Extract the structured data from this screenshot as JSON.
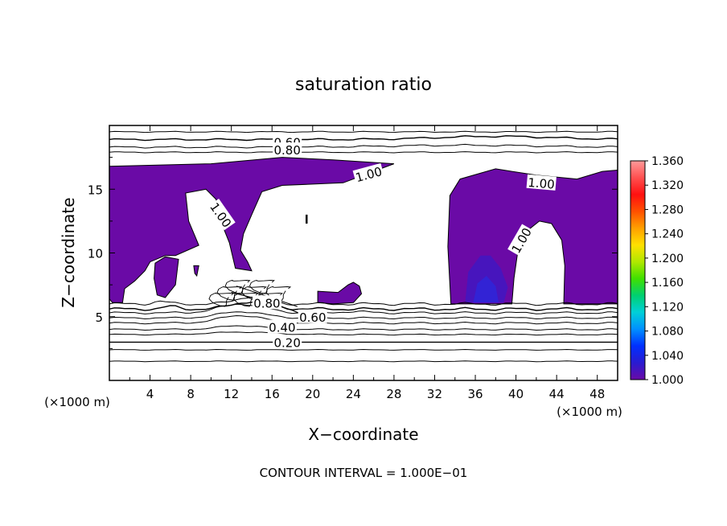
{
  "chart_data": {
    "type": "heatmap",
    "title": "saturation ratio",
    "xlabel": "X−coordinate",
    "ylabel": "Z−coordinate",
    "x_unit_left": "(×1000 m)",
    "x_unit_right": "(×1000 m)",
    "footer": "CONTOUR INTERVAL = 1.000E−01",
    "xlim": [
      0,
      50
    ],
    "ylim": [
      0,
      20
    ],
    "x_ticks": [
      4,
      8,
      12,
      16,
      20,
      24,
      28,
      32,
      36,
      40,
      44,
      48
    ],
    "y_ticks": [
      5,
      10,
      15
    ],
    "colorbar": {
      "min": 1.0,
      "max": 1.36,
      "ticks": [
        "1.360",
        "1.320",
        "1.280",
        "1.240",
        "1.200",
        "1.160",
        "1.120",
        "1.080",
        "1.040",
        "1.000"
      ],
      "colors": [
        "#6a0aa6",
        "#2a1bd0",
        "#0030ff",
        "#0090ff",
        "#00d0d8",
        "#00d070",
        "#40e000",
        "#b0e800",
        "#ffe000",
        "#ffa000",
        "#ff5000",
        "#ff1010",
        "#ff5050",
        "#ff9a9a"
      ]
    },
    "fill_color": "#6a0aa6",
    "contours": [
      {
        "label": "0.60",
        "x": 17.5,
        "y": 18.7
      },
      {
        "label": "0.80",
        "x": 17.5,
        "y": 18.1
      },
      {
        "label": "1.00",
        "x": 25.5,
        "y": 16.2
      },
      {
        "label": "1.00",
        "x": 42.5,
        "y": 15.5
      },
      {
        "label": "1.00",
        "x": 11.0,
        "y": 13.0
      },
      {
        "label": "1.00",
        "x": 40.5,
        "y": 11.0
      },
      {
        "label": "0.80",
        "x": 15.5,
        "y": 6.1
      },
      {
        "label": "0.60",
        "x": 20.0,
        "y": 5.0
      },
      {
        "label": "0.40",
        "x": 17.0,
        "y": 4.2
      },
      {
        "label": "0.20",
        "x": 17.5,
        "y": 3.0
      }
    ]
  }
}
